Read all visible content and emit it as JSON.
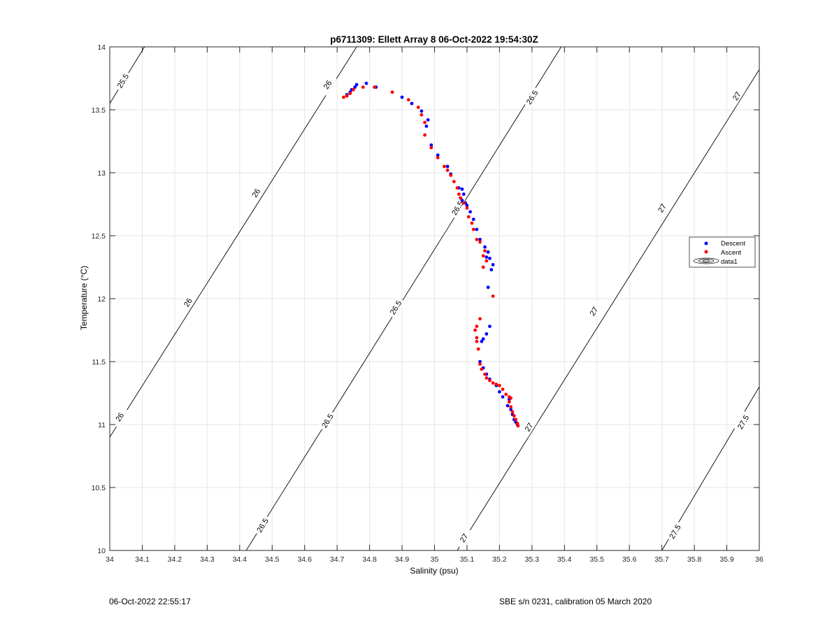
{
  "chart_data": {
    "type": "scatter",
    "title": "p6711309: Ellett Array 8 06-Oct-2022 19:54:30Z",
    "xlabel": "Salinity (psu)",
    "ylabel": "Temperature (°C)",
    "xlim": [
      34,
      36
    ],
    "ylim": [
      10,
      14
    ],
    "xticks": [
      34,
      34.1,
      34.2,
      34.3,
      34.4,
      34.5,
      34.6,
      34.7,
      34.8,
      34.9,
      35,
      35.1,
      35.2,
      35.3,
      35.4,
      35.5,
      35.6,
      35.7,
      35.8,
      35.9,
      36
    ],
    "xtick_labels": [
      "34",
      "34.1",
      "34.2",
      "34.3",
      "34.4",
      "34.5",
      "34.6",
      "34.7",
      "34.8",
      "34.9",
      "35",
      "35.1",
      "35.2",
      "35.3",
      "35.4",
      "35.5",
      "35.6",
      "35.7",
      "35.8",
      "35.9",
      "36"
    ],
    "yticks": [
      10,
      10.5,
      11,
      11.5,
      12,
      12.5,
      13,
      13.5,
      14
    ],
    "ytick_labels": [
      "10",
      "10.5",
      "11",
      "11.5",
      "12",
      "12.5",
      "13",
      "13.5",
      "14"
    ],
    "grid": true,
    "legend_position": "right",
    "legend": [
      {
        "label": "Descent",
        "color": "#0000ff",
        "marker": "dot"
      },
      {
        "label": "Ascent",
        "color": "#ff0000",
        "marker": "dot"
      },
      {
        "label": "data1",
        "color": "#000000",
        "marker": "contour"
      }
    ],
    "contours": [
      {
        "label": "25.5",
        "points": [
          [
            34.0,
            13.55
          ],
          [
            34.107,
            14.0
          ]
        ],
        "label_at": [
          [
            34.04,
            13.73
          ]
        ]
      },
      {
        "label": "26",
        "points": [
          [
            34.0,
            10.9
          ],
          [
            34.76,
            14.0
          ]
        ],
        "label_at": [
          [
            34.03,
            11.06
          ],
          [
            34.24,
            11.97
          ],
          [
            34.45,
            12.84
          ],
          [
            34.67,
            13.7
          ]
        ]
      },
      {
        "label": "26.5",
        "points": [
          [
            34.42,
            10.0
          ],
          [
            35.39,
            14.0
          ]
        ],
        "label_at": [
          [
            34.47,
            10.2
          ],
          [
            34.67,
            11.03
          ],
          [
            34.88,
            11.93
          ],
          [
            35.07,
            12.72
          ],
          [
            35.3,
            13.6
          ]
        ]
      },
      {
        "label": "27",
        "points": [
          [
            35.07,
            10.0
          ],
          [
            36.0,
            13.82
          ]
        ],
        "label_at": [
          [
            35.09,
            10.1
          ],
          [
            35.29,
            10.98
          ],
          [
            35.49,
            11.9
          ],
          [
            35.7,
            12.72
          ],
          [
            35.93,
            13.61
          ]
        ]
      },
      {
        "label": "27.5",
        "points": [
          [
            35.7,
            10.0
          ],
          [
            36.0,
            11.3
          ]
        ],
        "label_at": [
          [
            35.74,
            10.15
          ],
          [
            35.95,
            11.02
          ]
        ]
      }
    ],
    "series": [
      {
        "name": "Descent",
        "color": "#0000ff",
        "points": [
          [
            34.73,
            13.62
          ],
          [
            34.74,
            13.64
          ],
          [
            34.745,
            13.66
          ],
          [
            34.755,
            13.68
          ],
          [
            34.76,
            13.7
          ],
          [
            34.79,
            13.71
          ],
          [
            34.82,
            13.68
          ],
          [
            34.9,
            13.6
          ],
          [
            34.93,
            13.55
          ],
          [
            34.96,
            13.49
          ],
          [
            34.98,
            13.42
          ],
          [
            34.975,
            13.37
          ],
          [
            34.99,
            13.22
          ],
          [
            35.01,
            13.14
          ],
          [
            35.04,
            13.05
          ],
          [
            35.05,
            12.99
          ],
          [
            35.075,
            12.88
          ],
          [
            35.085,
            12.87
          ],
          [
            35.09,
            12.83
          ],
          [
            35.085,
            12.78
          ],
          [
            35.095,
            12.76
          ],
          [
            35.1,
            12.74
          ],
          [
            35.11,
            12.69
          ],
          [
            35.12,
            12.63
          ],
          [
            35.13,
            12.55
          ],
          [
            35.14,
            12.47
          ],
          [
            35.155,
            12.41
          ],
          [
            35.165,
            12.37
          ],
          [
            35.16,
            12.33
          ],
          [
            35.17,
            12.32
          ],
          [
            35.18,
            12.27
          ],
          [
            35.175,
            12.23
          ],
          [
            35.165,
            12.09
          ],
          [
            35.17,
            11.78
          ],
          [
            35.16,
            11.72
          ],
          [
            35.15,
            11.68
          ],
          [
            35.145,
            11.66
          ],
          [
            35.14,
            11.5
          ],
          [
            35.15,
            11.45
          ],
          [
            35.16,
            11.4
          ],
          [
            35.17,
            11.36
          ],
          [
            35.19,
            11.31
          ],
          [
            35.2,
            11.26
          ],
          [
            35.21,
            11.22
          ],
          [
            35.23,
            11.2
          ],
          [
            35.225,
            11.15
          ],
          [
            35.235,
            11.12
          ],
          [
            35.24,
            11.08
          ],
          [
            35.245,
            11.04
          ],
          [
            35.25,
            11.02
          ],
          [
            35.255,
            11.0
          ]
        ]
      },
      {
        "name": "Ascent",
        "color": "#ff0000",
        "points": [
          [
            34.72,
            13.6
          ],
          [
            34.73,
            13.61
          ],
          [
            34.74,
            13.63
          ],
          [
            34.75,
            13.66
          ],
          [
            34.78,
            13.68
          ],
          [
            34.815,
            13.68
          ],
          [
            34.87,
            13.64
          ],
          [
            34.92,
            13.58
          ],
          [
            34.95,
            13.52
          ],
          [
            34.96,
            13.46
          ],
          [
            34.97,
            13.4
          ],
          [
            34.97,
            13.3
          ],
          [
            34.99,
            13.2
          ],
          [
            35.01,
            13.12
          ],
          [
            35.03,
            13.05
          ],
          [
            35.04,
            13.02
          ],
          [
            35.05,
            12.98
          ],
          [
            35.06,
            12.93
          ],
          [
            35.07,
            12.88
          ],
          [
            35.075,
            12.83
          ],
          [
            35.08,
            12.8
          ],
          [
            35.09,
            12.76
          ],
          [
            35.1,
            12.72
          ],
          [
            35.105,
            12.65
          ],
          [
            35.115,
            12.6
          ],
          [
            35.12,
            12.55
          ],
          [
            35.13,
            12.47
          ],
          [
            35.14,
            12.45
          ],
          [
            35.155,
            12.38
          ],
          [
            35.15,
            12.34
          ],
          [
            35.16,
            12.3
          ],
          [
            35.15,
            12.25
          ],
          [
            35.18,
            12.02
          ],
          [
            35.14,
            11.84
          ],
          [
            35.13,
            11.78
          ],
          [
            35.125,
            11.75
          ],
          [
            35.13,
            11.69
          ],
          [
            35.13,
            11.66
          ],
          [
            35.135,
            11.6
          ],
          [
            35.14,
            11.48
          ],
          [
            35.145,
            11.44
          ],
          [
            35.155,
            11.4
          ],
          [
            35.16,
            11.37
          ],
          [
            35.17,
            11.35
          ],
          [
            35.18,
            11.33
          ],
          [
            35.19,
            11.32
          ],
          [
            35.2,
            11.31
          ],
          [
            35.21,
            11.28
          ],
          [
            35.22,
            11.24
          ],
          [
            35.23,
            11.22
          ],
          [
            35.235,
            11.21
          ],
          [
            35.23,
            11.18
          ],
          [
            35.235,
            11.14
          ],
          [
            35.24,
            11.1
          ],
          [
            35.245,
            11.07
          ],
          [
            35.25,
            11.04
          ],
          [
            35.255,
            11.01
          ],
          [
            35.257,
            10.99
          ]
        ]
      }
    ]
  },
  "footer": {
    "left": "06-Oct-2022 22:55:17",
    "right": "SBE s/n 0231, calibration 05 March 2020"
  }
}
